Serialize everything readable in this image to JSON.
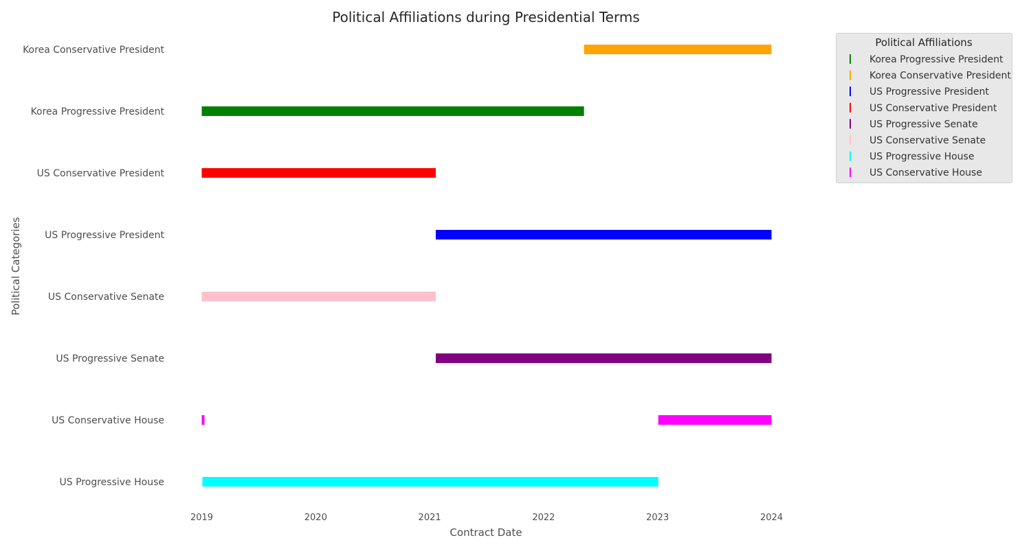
{
  "chart_data": {
    "type": "bar",
    "orientation": "horizontal-timeline",
    "title": "Political Affiliations during Presidential Terms",
    "xlabel": "Contract Date",
    "ylabel": "Political Categories",
    "xlim": [
      "2018-12-31",
      "2024-01-01"
    ],
    "x_ticks": [
      "2019",
      "2020",
      "2021",
      "2022",
      "2023",
      "2024"
    ],
    "grid": false,
    "categories": [
      "US Progressive House",
      "US Conservative House",
      "US Progressive Senate",
      "US Conservative Senate",
      "US Progressive President",
      "US Conservative President",
      "Korea Progressive President",
      "Korea Conservative President"
    ],
    "series": [
      {
        "name": "Korea Progressive President",
        "color": "#008000",
        "segments": [
          {
            "category": "Korea Progressive President",
            "start": "2019-01-01",
            "end": "2022-05-10"
          }
        ]
      },
      {
        "name": "Korea Conservative President",
        "color": "#ffa500",
        "segments": [
          {
            "category": "Korea Conservative President",
            "start": "2022-05-10",
            "end": "2024-01-01"
          }
        ]
      },
      {
        "name": "US Progressive President",
        "color": "#0000ff",
        "segments": [
          {
            "category": "US Progressive President",
            "start": "2021-01-20",
            "end": "2024-01-01"
          }
        ]
      },
      {
        "name": "US Conservative President",
        "color": "#ff0000",
        "segments": [
          {
            "category": "US Conservative President",
            "start": "2019-01-01",
            "end": "2021-01-20"
          }
        ]
      },
      {
        "name": "US Progressive Senate",
        "color": "#800080",
        "segments": [
          {
            "category": "US Progressive Senate",
            "start": "2021-01-20",
            "end": "2024-01-01"
          }
        ]
      },
      {
        "name": "US Conservative Senate",
        "color": "#ffc0cb",
        "segments": [
          {
            "category": "US Conservative Senate",
            "start": "2019-01-01",
            "end": "2021-01-20"
          }
        ]
      },
      {
        "name": "US Progressive House",
        "color": "#00ffff",
        "segments": [
          {
            "category": "US Progressive House",
            "start": "2019-01-03",
            "end": "2023-01-03"
          }
        ]
      },
      {
        "name": "US Conservative House",
        "color": "#ff00ff",
        "segments": [
          {
            "category": "US Conservative House",
            "start": "2019-01-01",
            "end": "2019-01-03"
          },
          {
            "category": "US Conservative House",
            "start": "2023-01-03",
            "end": "2024-01-01"
          }
        ]
      }
    ],
    "legend": {
      "title": "Political Affiliations",
      "placement": "upper-right-outside",
      "entries": [
        {
          "label": "Korea Progressive President",
          "color": "#008000"
        },
        {
          "label": "Korea Conservative President",
          "color": "#ffa500"
        },
        {
          "label": "US Progressive President",
          "color": "#0000ff"
        },
        {
          "label": "US Conservative President",
          "color": "#ff0000"
        },
        {
          "label": "US Progressive Senate",
          "color": "#800080"
        },
        {
          "label": "US Conservative Senate",
          "color": "#ffc0cb"
        },
        {
          "label": "US Progressive House",
          "color": "#00ffff"
        },
        {
          "label": "US Conservative House",
          "color": "#ff00ff"
        }
      ]
    }
  }
}
